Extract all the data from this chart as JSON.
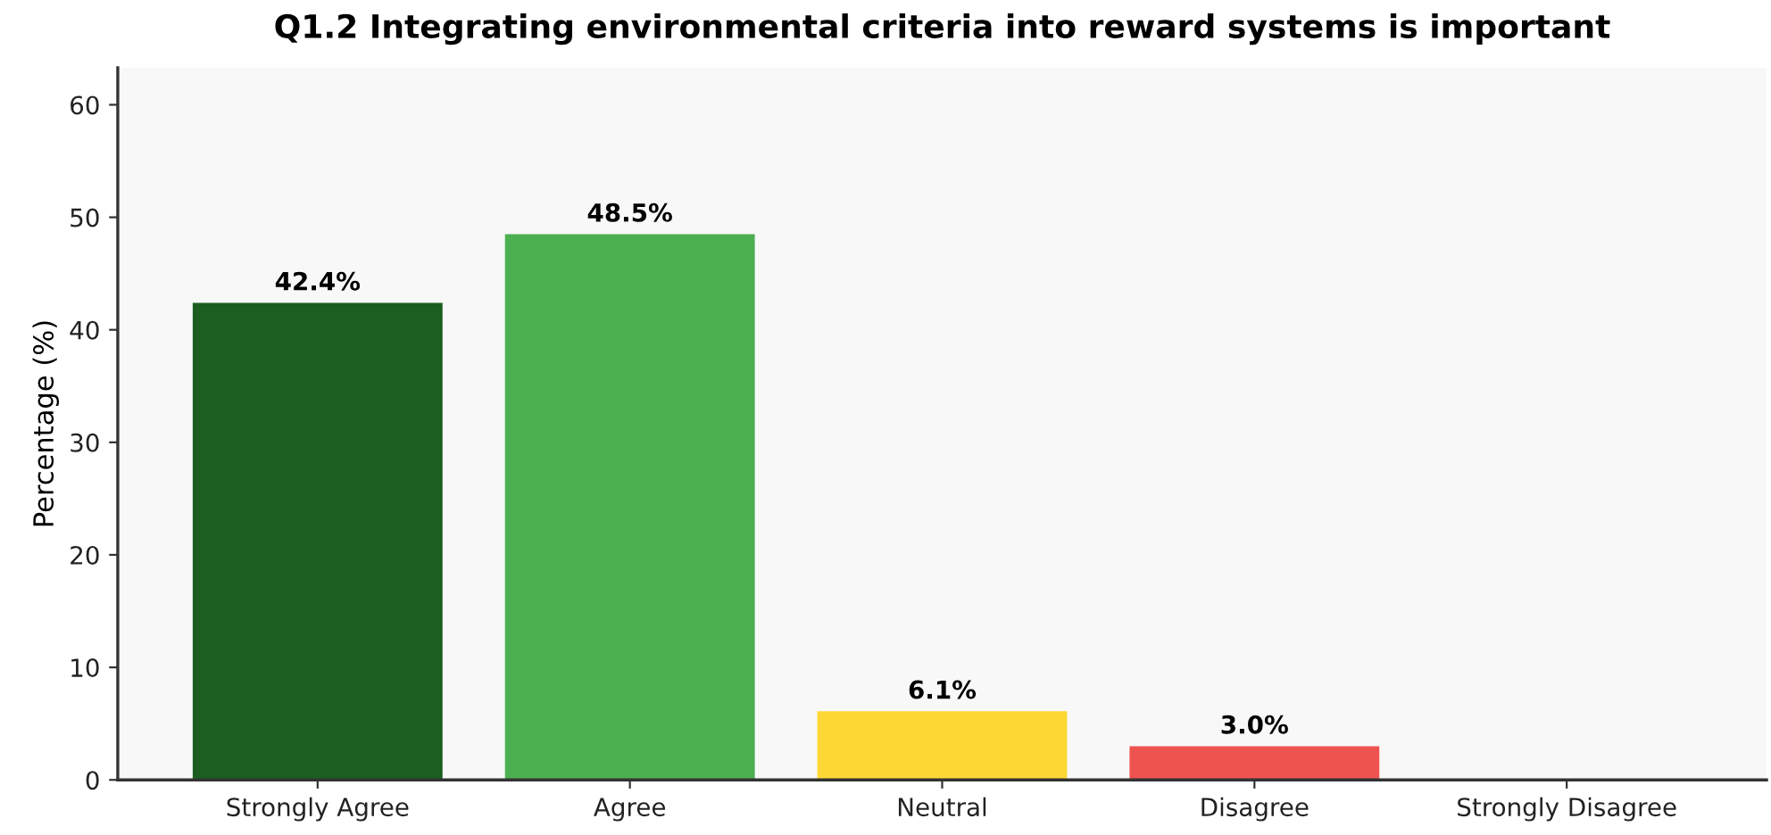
{
  "chart_data": {
    "type": "bar",
    "title": "Q1.2 Integrating environmental criteria into reward systems is important",
    "ylabel": "Percentage (%)",
    "categories": [
      "Strongly Agree",
      "Agree",
      "Neutral",
      "Disagree",
      "Strongly Disagree"
    ],
    "values": [
      42.4,
      48.5,
      6.1,
      3.0,
      0
    ],
    "colors": [
      "#1b5e20",
      "#4caf50",
      "#fdd835",
      "#ef5350",
      "#c62828"
    ],
    "value_labels": [
      "42.4%",
      "48.5%",
      "6.1%",
      "3.0%",
      null
    ],
    "ylim": [
      0,
      63.3
    ],
    "yticks": [
      0,
      10,
      20,
      30,
      40,
      50,
      60
    ],
    "grid": false,
    "legend": false
  }
}
